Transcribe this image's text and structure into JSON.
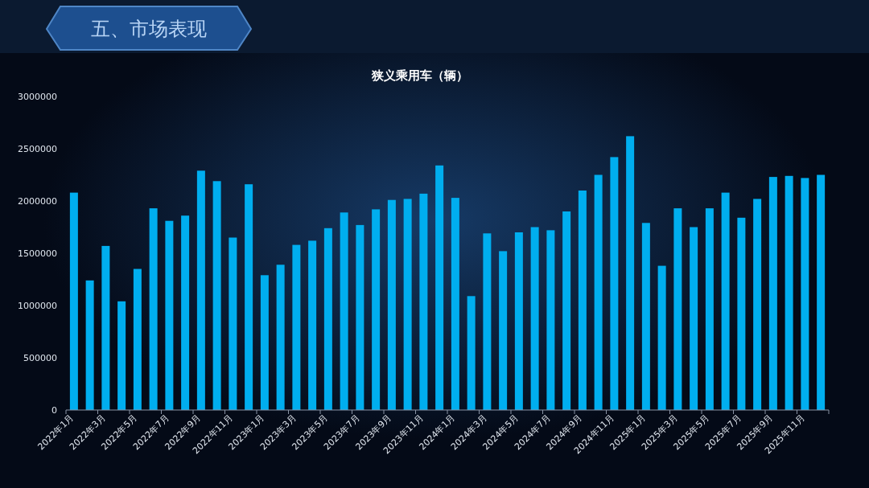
{
  "chart_data": {
    "type": "bar",
    "title": "狭义乘用车（辆）",
    "annotations": [
      "五、市场表现"
    ],
    "categories": [
      "2022年1月",
      null,
      "2022年3月",
      null,
      "2022年5月",
      null,
      "2022年7月",
      null,
      "2022年9月",
      null,
      "2022年11月",
      null,
      "2023年1月",
      null,
      "2023年3月",
      null,
      "2023年5月",
      null,
      "2023年7月",
      null,
      "2023年9月",
      null,
      "2023年11月",
      null,
      "2024年1月",
      null,
      "2024年3月",
      null,
      "2024年5月",
      null,
      "2024年7月",
      null,
      "2024年9月",
      null,
      "2024年11月",
      null,
      "2025年1月",
      null,
      "2025年3月",
      null,
      "2025年5月",
      null,
      "2025年7月",
      null,
      "2025年9月",
      null,
      "2025年11月",
      null
    ],
    "values": [
      2080000,
      1240000,
      1570000,
      1040000,
      1350000,
      1930000,
      1810000,
      1860000,
      2290000,
      2190000,
      1650000,
      2160000,
      1290000,
      1390000,
      1580000,
      1620000,
      1740000,
      1890000,
      1770000,
      1920000,
      2010000,
      2020000,
      2070000,
      2340000,
      2030000,
      1090000,
      1690000,
      1520000,
      1700000,
      1750000,
      1720000,
      1900000,
      2100000,
      2250000,
      2420000,
      2620000,
      1790000,
      1380000,
      1930000,
      1750000,
      1930000,
      2080000,
      1840000,
      2020000,
      2230000,
      2240000,
      2220000,
      2250000
    ],
    "color": "#00aeef",
    "ylim": [
      0,
      3000000
    ],
    "yticks": [
      0,
      500000,
      1000000,
      1500000,
      2000000,
      2500000,
      3000000
    ]
  }
}
